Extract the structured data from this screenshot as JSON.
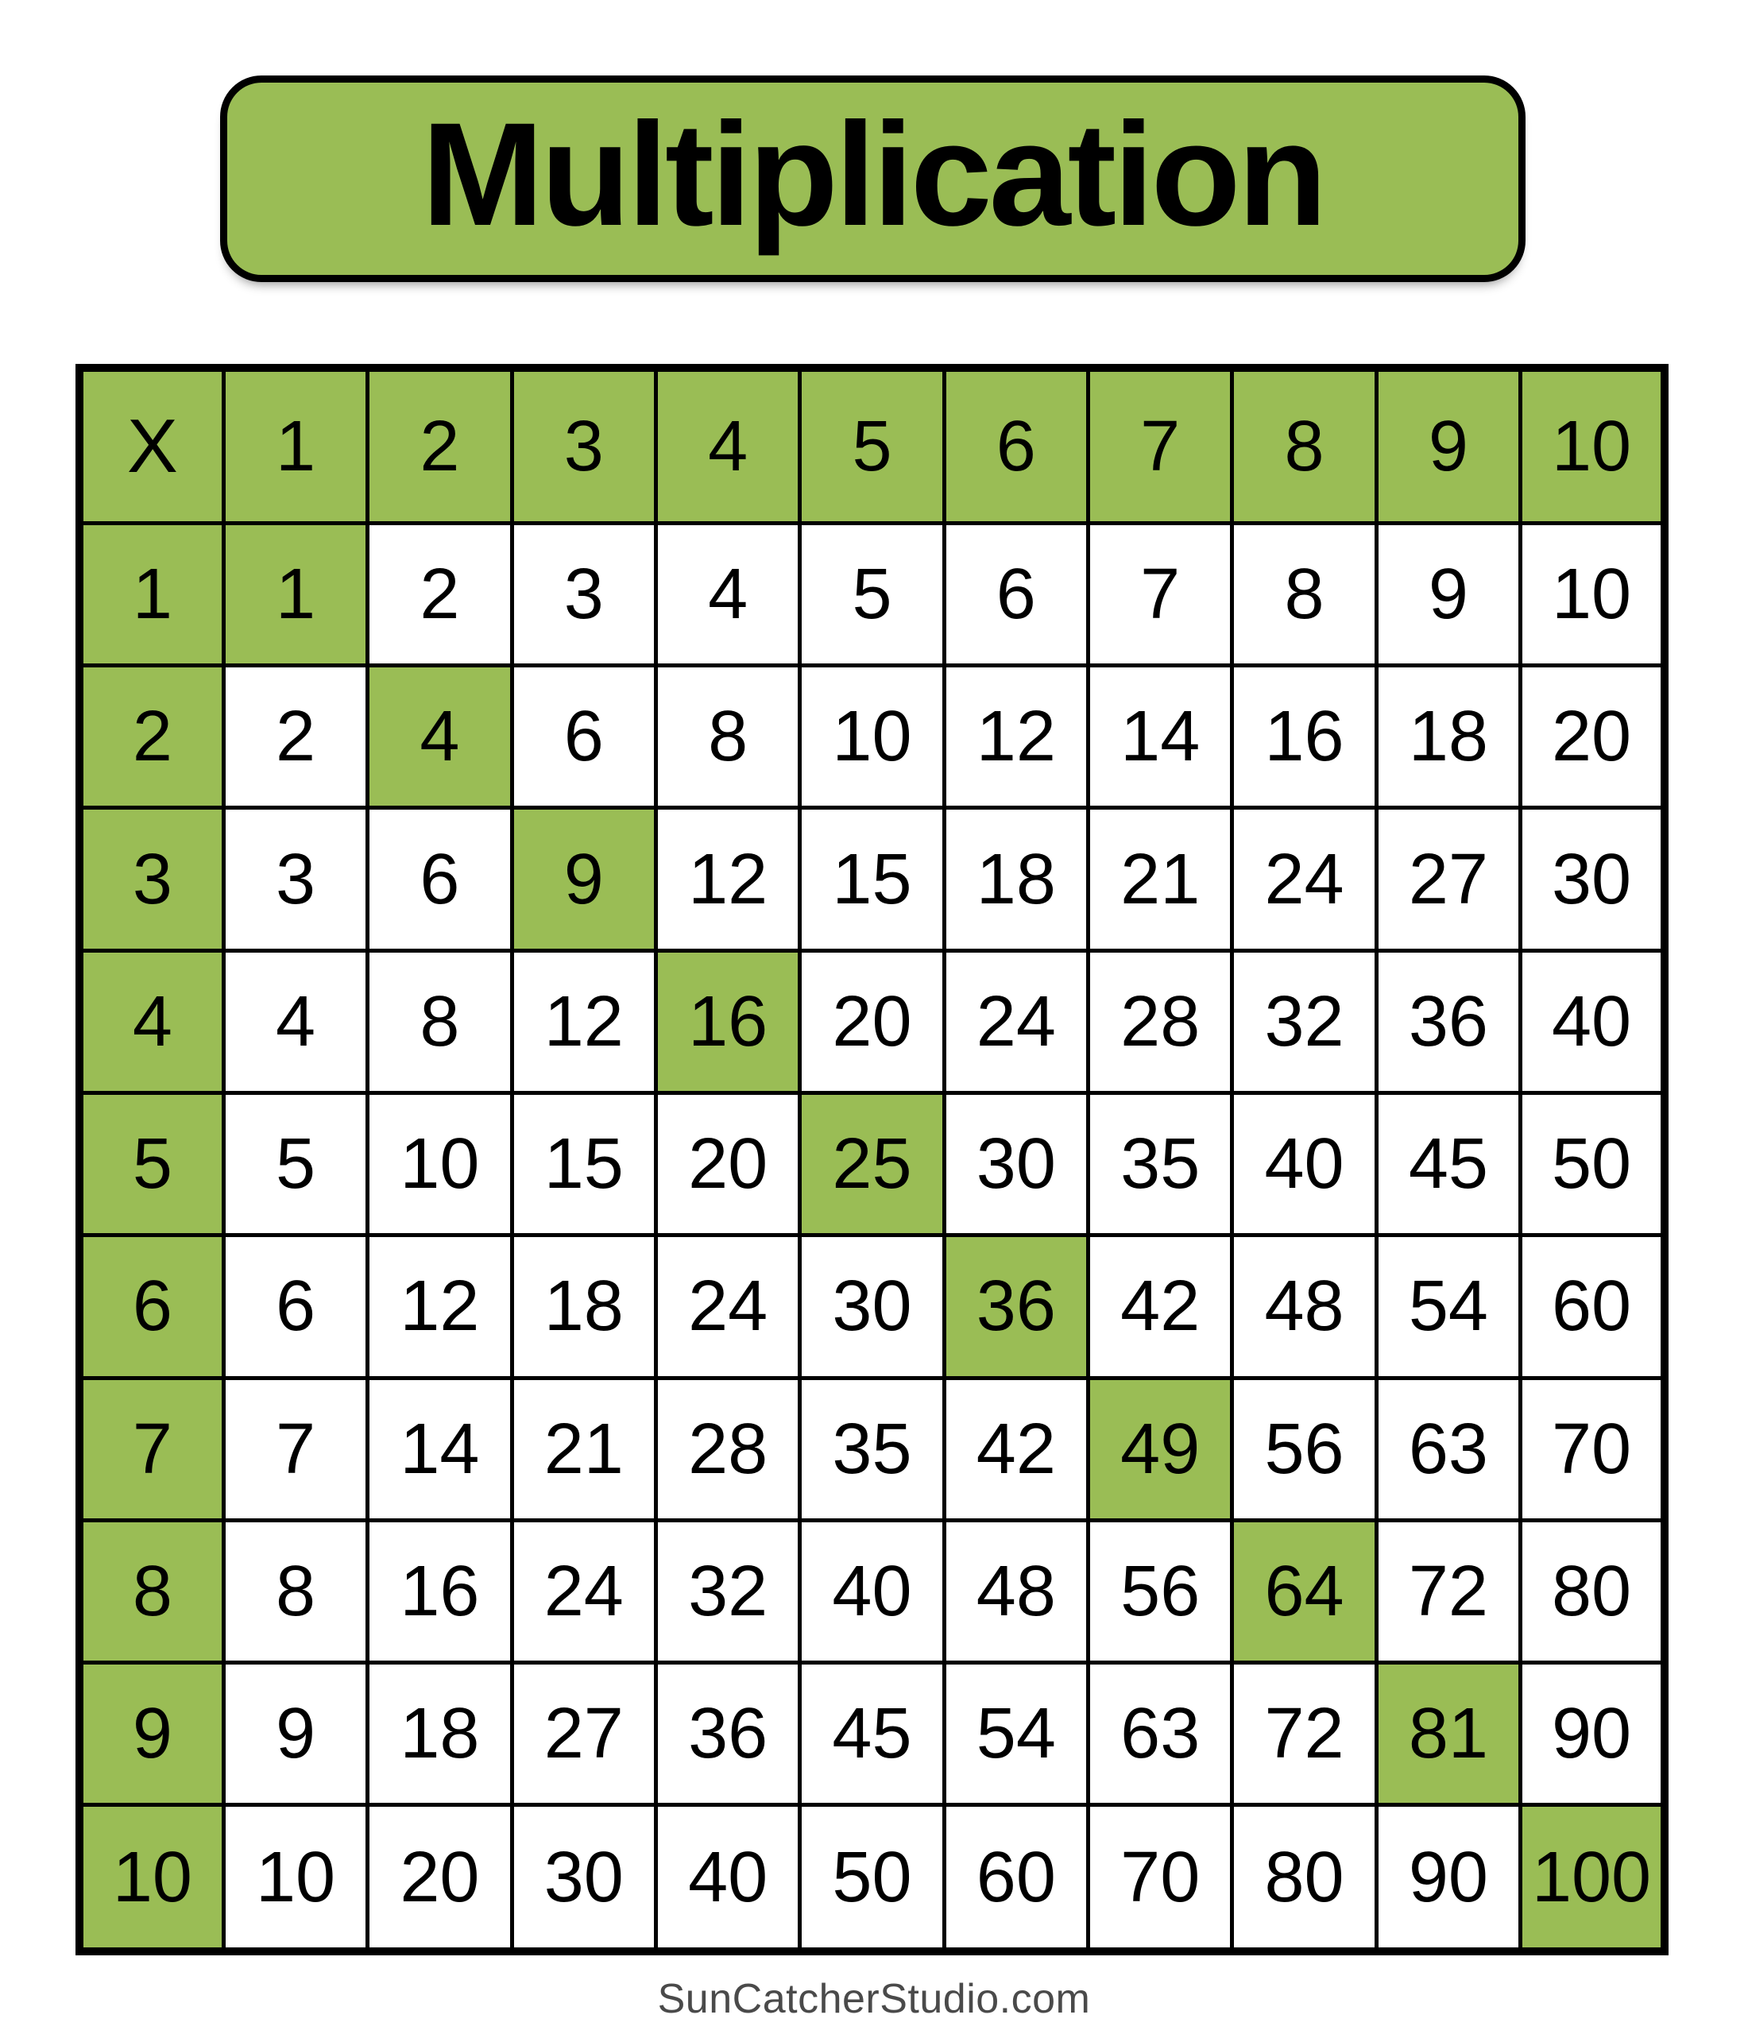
{
  "page": {
    "background": "#ffffff"
  },
  "title_badge": {
    "label": "Multiplication"
  },
  "footer": {
    "label": "SunCatcherStudio.com"
  },
  "colors": {
    "green": "#9abd55",
    "border_black": "#000000",
    "text_black": "#000000",
    "footer_gray": "#4a4a4a",
    "white": "#ffffff"
  },
  "chart_data": {
    "type": "table",
    "title": "Multiplication",
    "corner_label": "X",
    "columns": [
      1,
      2,
      3,
      4,
      5,
      6,
      7,
      8,
      9,
      10
    ],
    "rows": [
      1,
      2,
      3,
      4,
      5,
      6,
      7,
      8,
      9,
      10
    ],
    "values": [
      [
        1,
        2,
        3,
        4,
        5,
        6,
        7,
        8,
        9,
        10
      ],
      [
        2,
        4,
        6,
        8,
        10,
        12,
        14,
        16,
        18,
        20
      ],
      [
        3,
        6,
        9,
        12,
        15,
        18,
        21,
        24,
        27,
        30
      ],
      [
        4,
        8,
        12,
        16,
        20,
        24,
        28,
        32,
        36,
        40
      ],
      [
        5,
        10,
        15,
        20,
        25,
        30,
        35,
        40,
        45,
        50
      ],
      [
        6,
        12,
        18,
        24,
        30,
        36,
        42,
        48,
        54,
        60
      ],
      [
        7,
        14,
        21,
        28,
        35,
        42,
        49,
        56,
        63,
        70
      ],
      [
        8,
        16,
        24,
        32,
        40,
        48,
        56,
        64,
        72,
        80
      ],
      [
        9,
        18,
        27,
        36,
        45,
        54,
        63,
        72,
        81,
        90
      ],
      [
        10,
        20,
        30,
        40,
        50,
        60,
        70,
        80,
        90,
        100
      ]
    ],
    "highlight": {
      "header_row": true,
      "header_column": true,
      "diagonal_perfect_squares": [
        1,
        4,
        9,
        16,
        25,
        36,
        49,
        64,
        81,
        100
      ],
      "color": "#9abd55"
    },
    "grid": true,
    "legend_position": "none"
  }
}
